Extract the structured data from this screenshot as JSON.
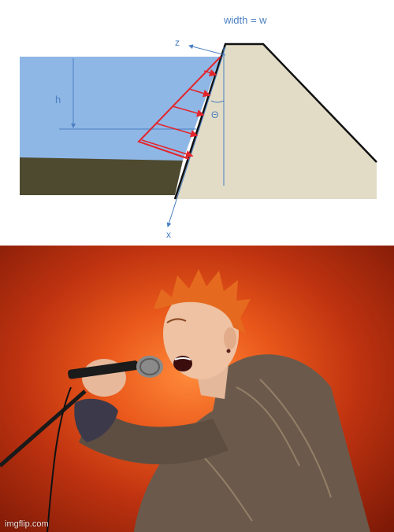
{
  "diagram": {
    "width_label": "width = w",
    "z_label": "z",
    "h_label": "h",
    "theta_label": "Θ",
    "x_label": "x",
    "colors": {
      "water": "#8fb7e6",
      "soil": "#4e4a30",
      "dam": "#e2dcc6",
      "pressure": "#e3262c",
      "axis": "#4a7fc1"
    }
  },
  "photo": {
    "subject": "rock singer with spiky orange hair and sparkly jacket singing into microphone on stand",
    "background_color": "#d94a17",
    "watermark": "imgflip.com"
  }
}
